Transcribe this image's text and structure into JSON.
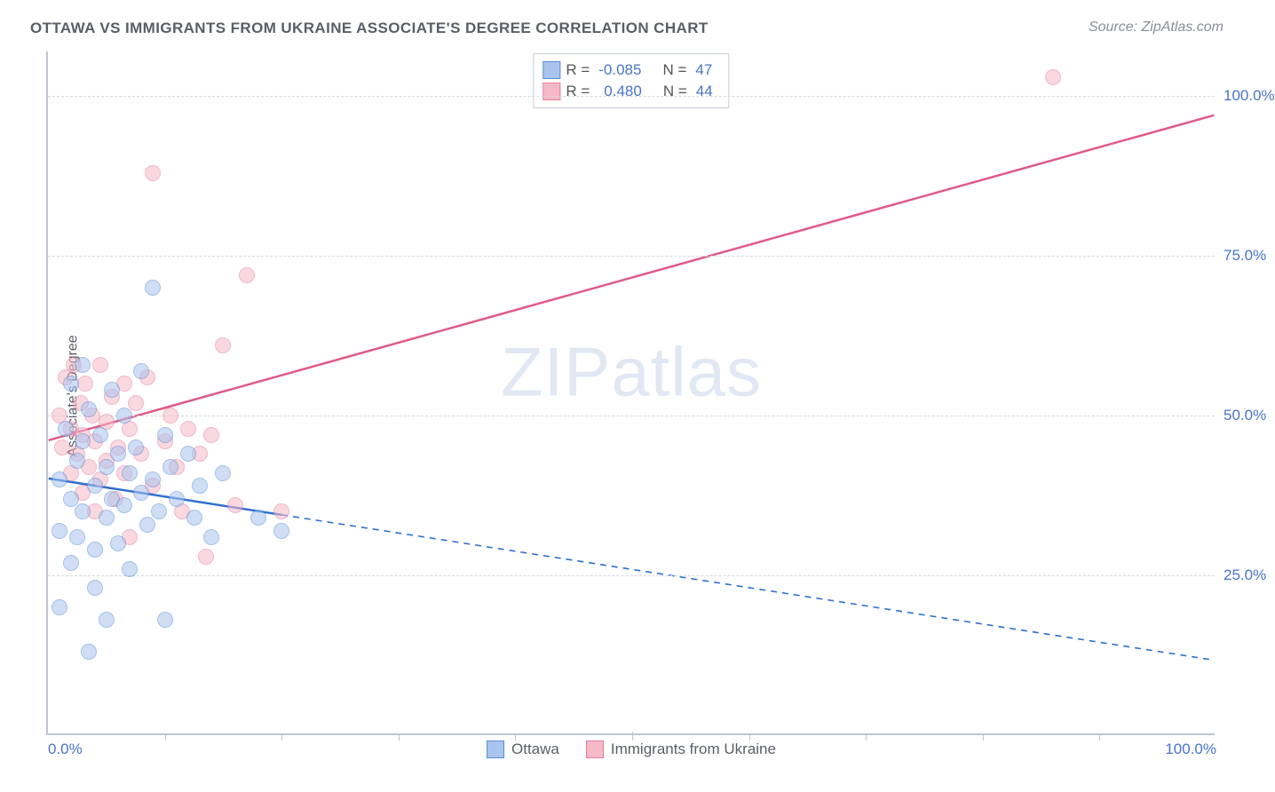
{
  "title": "OTTAWA VS IMMIGRANTS FROM UKRAINE ASSOCIATE'S DEGREE CORRELATION CHART",
  "source_prefix": "Source: ",
  "source_name": "ZipAtlas.com",
  "ylabel": "Associate's Degree",
  "watermark_bold": "ZIP",
  "watermark_thin": "atlas",
  "chart": {
    "type": "scatter",
    "xlim": [
      0,
      100
    ],
    "ylim": [
      0,
      107
    ],
    "background_color": "#ffffff",
    "grid_color": "#d3d9e0",
    "axis_color": "#bfc6cf",
    "tick_label_color": "#4a74c9",
    "yticks": [
      {
        "v": 25,
        "label": "25.0%"
      },
      {
        "v": 50,
        "label": "50.0%"
      },
      {
        "v": 75,
        "label": "75.0%"
      },
      {
        "v": 100,
        "label": "100.0%"
      }
    ],
    "xticks_minor": [
      10,
      20,
      30,
      40,
      50,
      60,
      70,
      80,
      90
    ],
    "xlabels": [
      {
        "v": 0,
        "label": "0.0%"
      },
      {
        "v": 100,
        "label": "100.0%"
      }
    ],
    "series": [
      {
        "name": "Ottawa",
        "fill": "#a9c4ee",
        "stroke": "#5a8fd6",
        "fill_opacity": 0.55,
        "r_label": "R =",
        "r_value": "-0.085",
        "n_label": "N =",
        "n_value": "47",
        "trend": {
          "x1": 0,
          "y1": 40,
          "x2": 100,
          "y2": 11.5,
          "solid_until_x": 20,
          "color": "#2f6fd0",
          "width": 2.5
        },
        "points": [
          [
            1,
            40
          ],
          [
            1,
            32
          ],
          [
            1,
            20
          ],
          [
            1.5,
            48
          ],
          [
            2,
            55
          ],
          [
            2,
            37
          ],
          [
            2,
            27
          ],
          [
            2.5,
            43
          ],
          [
            2.5,
            31
          ],
          [
            3,
            58
          ],
          [
            3,
            46
          ],
          [
            3,
            35
          ],
          [
            3.5,
            51
          ],
          [
            3.5,
            13
          ],
          [
            4,
            39
          ],
          [
            4,
            29
          ],
          [
            4,
            23
          ],
          [
            4.5,
            47
          ],
          [
            5,
            42
          ],
          [
            5,
            34
          ],
          [
            5,
            18
          ],
          [
            5.5,
            54
          ],
          [
            5.5,
            37
          ],
          [
            6,
            44
          ],
          [
            6,
            30
          ],
          [
            6.5,
            50
          ],
          [
            6.5,
            36
          ],
          [
            7,
            41
          ],
          [
            7,
            26
          ],
          [
            7.5,
            45
          ],
          [
            8,
            57
          ],
          [
            8,
            38
          ],
          [
            8.5,
            33
          ],
          [
            9,
            70
          ],
          [
            9,
            40
          ],
          [
            9.5,
            35
          ],
          [
            10,
            47
          ],
          [
            10,
            18
          ],
          [
            10.5,
            42
          ],
          [
            11,
            37
          ],
          [
            12,
            44
          ],
          [
            12.5,
            34
          ],
          [
            13,
            39
          ],
          [
            14,
            31
          ],
          [
            15,
            41
          ],
          [
            18,
            34
          ],
          [
            20,
            32
          ]
        ]
      },
      {
        "name": "Immigrants from Ukraine",
        "fill": "#f6b9c8",
        "stroke": "#e37ea0",
        "fill_opacity": 0.55,
        "r_label": "R =",
        "r_value": "0.480",
        "n_label": "N =",
        "n_value": "44",
        "trend": {
          "x1": 0,
          "y1": 46,
          "x2": 100,
          "y2": 97,
          "solid_until_x": 100,
          "color": "#e05a88",
          "width": 2.5
        },
        "points": [
          [
            1,
            50
          ],
          [
            1.2,
            45
          ],
          [
            1.5,
            56
          ],
          [
            2,
            48
          ],
          [
            2,
            41
          ],
          [
            2.2,
            58
          ],
          [
            2.5,
            44
          ],
          [
            2.8,
            52
          ],
          [
            3,
            38
          ],
          [
            3,
            47
          ],
          [
            3.2,
            55
          ],
          [
            3.5,
            42
          ],
          [
            3.8,
            50
          ],
          [
            4,
            35
          ],
          [
            4,
            46
          ],
          [
            4.5,
            58
          ],
          [
            4.5,
            40
          ],
          [
            5,
            49
          ],
          [
            5,
            43
          ],
          [
            5.5,
            53
          ],
          [
            5.8,
            37
          ],
          [
            6,
            45
          ],
          [
            6.5,
            55
          ],
          [
            6.5,
            41
          ],
          [
            7,
            48
          ],
          [
            7,
            31
          ],
          [
            7.5,
            52
          ],
          [
            8,
            44
          ],
          [
            8.5,
            56
          ],
          [
            9,
            39
          ],
          [
            9,
            88
          ],
          [
            10,
            46
          ],
          [
            10.5,
            50
          ],
          [
            11,
            42
          ],
          [
            11.5,
            35
          ],
          [
            12,
            48
          ],
          [
            13,
            44
          ],
          [
            13.5,
            28
          ],
          [
            14,
            47
          ],
          [
            15,
            61
          ],
          [
            16,
            36
          ],
          [
            17,
            72
          ],
          [
            20,
            35
          ],
          [
            86,
            103
          ]
        ]
      }
    ]
  }
}
